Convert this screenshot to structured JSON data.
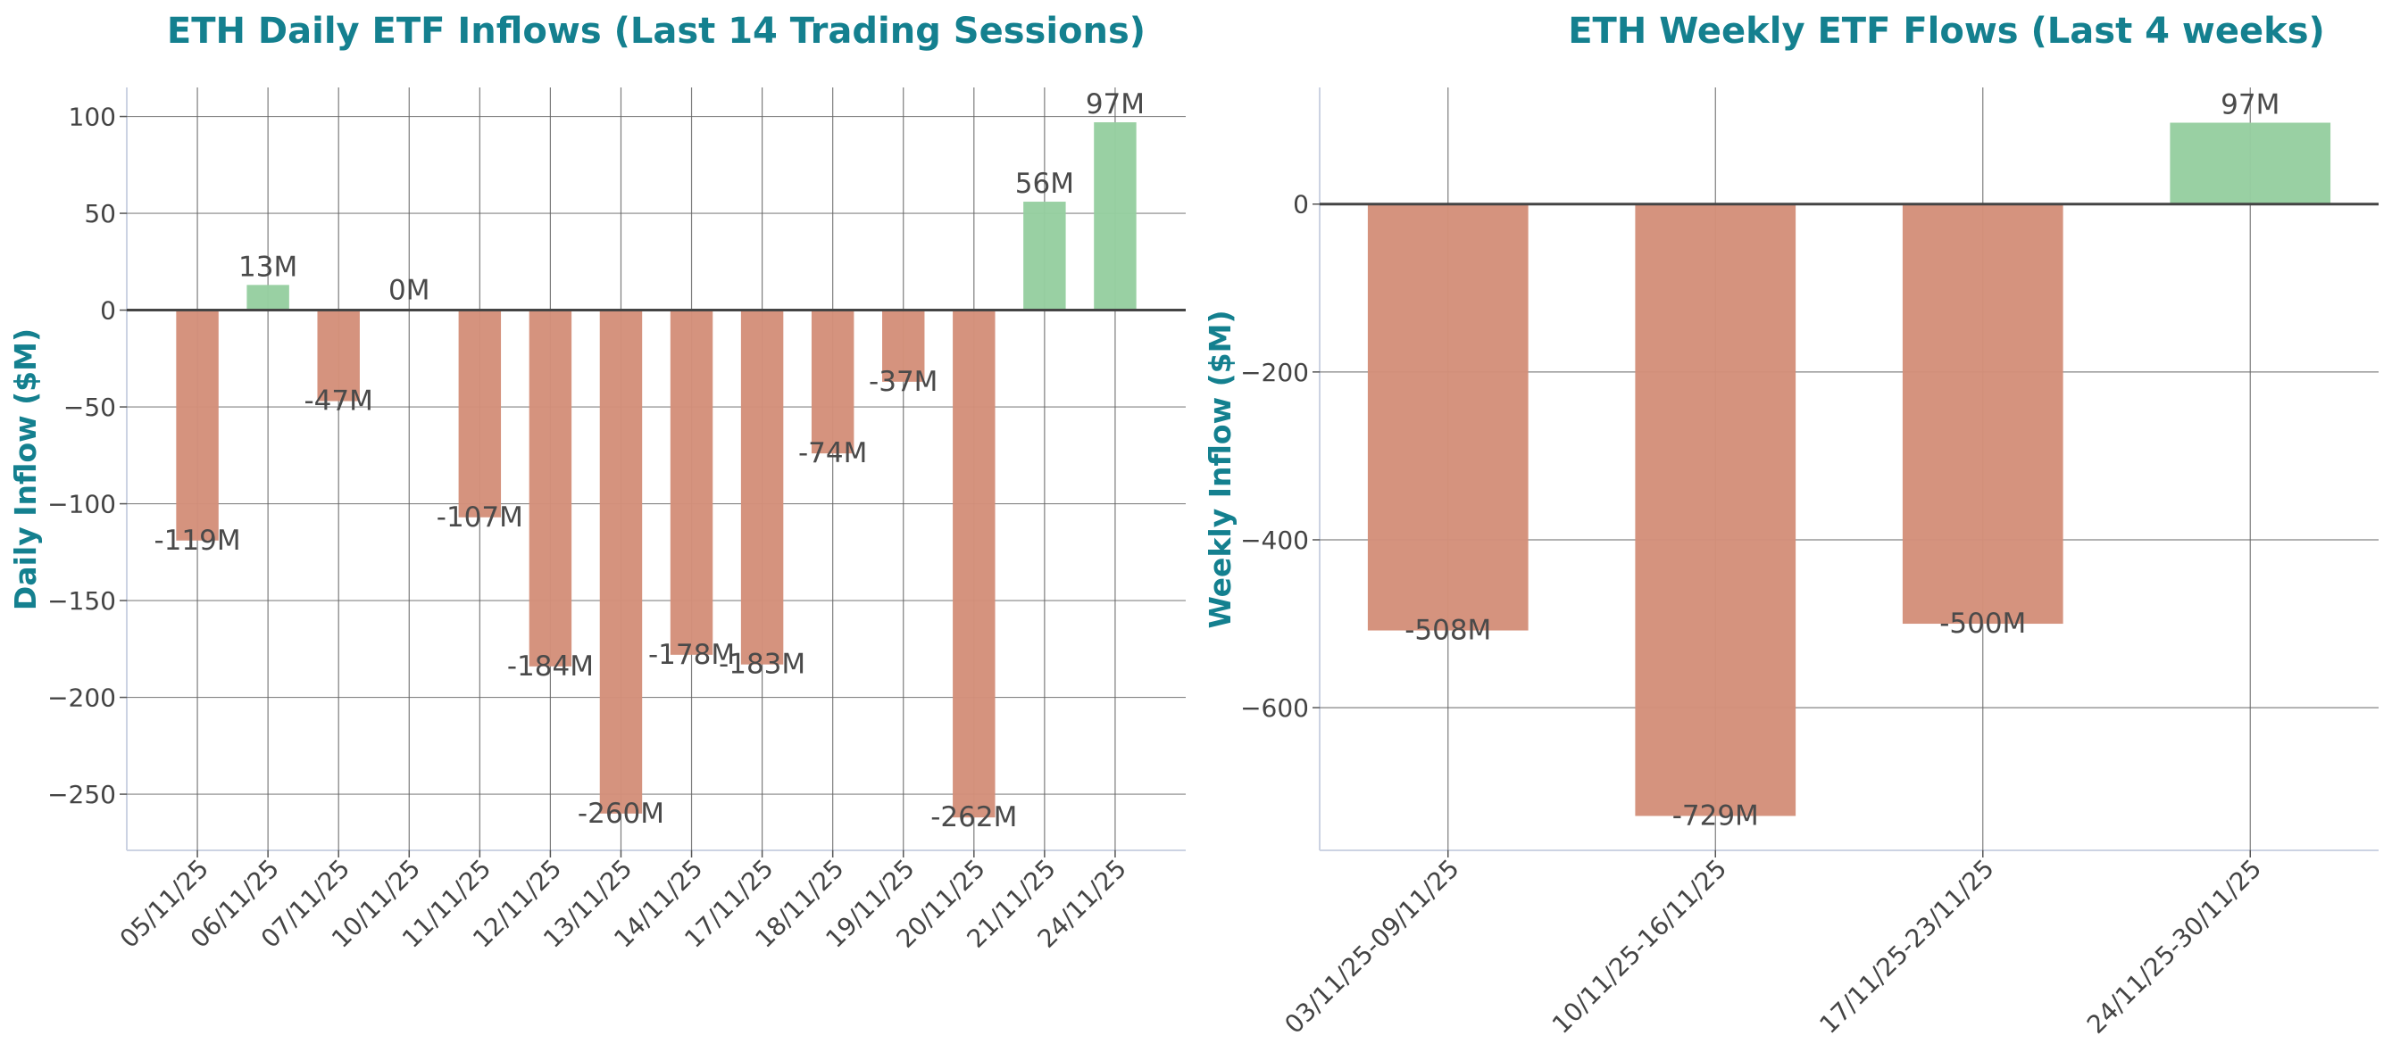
{
  "colors": {
    "negative": "#d4907a",
    "positive": "#96cea0",
    "title": "#14808f",
    "grid": "#666666",
    "zero_line": "#444444"
  },
  "chart_data": [
    {
      "type": "bar",
      "title": "ETH Daily ETF Inflows (Last 14 Trading Sessions)",
      "xlabel": "",
      "ylabel": "Daily Inflow ($M)",
      "categories": [
        "05/11/25",
        "06/11/25",
        "07/11/25",
        "10/11/25",
        "11/11/25",
        "12/11/25",
        "13/11/25",
        "14/11/25",
        "17/11/25",
        "18/11/25",
        "19/11/25",
        "20/11/25",
        "21/11/25",
        "24/11/25"
      ],
      "values": [
        -119,
        13,
        -47,
        0,
        -107,
        -184,
        -260,
        -178,
        -183,
        -74,
        -37,
        -262,
        56,
        97
      ],
      "data_labels": [
        "-119M",
        "13M",
        "-47M",
        "0M",
        "-107M",
        "-184M",
        "-260M",
        "-178M",
        "-183M",
        "-74M",
        "-37M",
        "-262M",
        "56M",
        "97M"
      ],
      "yticks": [
        100,
        50,
        0,
        -50,
        -100,
        -150,
        -200,
        -250
      ],
      "ytick_labels": [
        "100",
        "50",
        "0",
        "−50",
        "−100",
        "−150",
        "−200",
        "−250"
      ],
      "ylim": [
        -279,
        115
      ],
      "grid": true,
      "legend": "none"
    },
    {
      "type": "bar",
      "title": "ETH Weekly ETF Flows (Last 4 weeks)",
      "xlabel": "",
      "ylabel": "Weekly Inflow ($M)",
      "categories": [
        "03/11/25-09/11/25",
        "10/11/25-16/11/25",
        "17/11/25-23/11/25",
        "24/11/25-30/11/25"
      ],
      "values": [
        -508,
        -729,
        -500,
        97
      ],
      "data_labels": [
        "-508M",
        "-729M",
        "-500M",
        "97M"
      ],
      "yticks": [
        0,
        -200,
        -400,
        -600
      ],
      "ytick_labels": [
        "0",
        "−200",
        "−400",
        "−600"
      ],
      "ylim": [
        -770,
        139
      ],
      "grid": true,
      "legend": "none"
    }
  ]
}
